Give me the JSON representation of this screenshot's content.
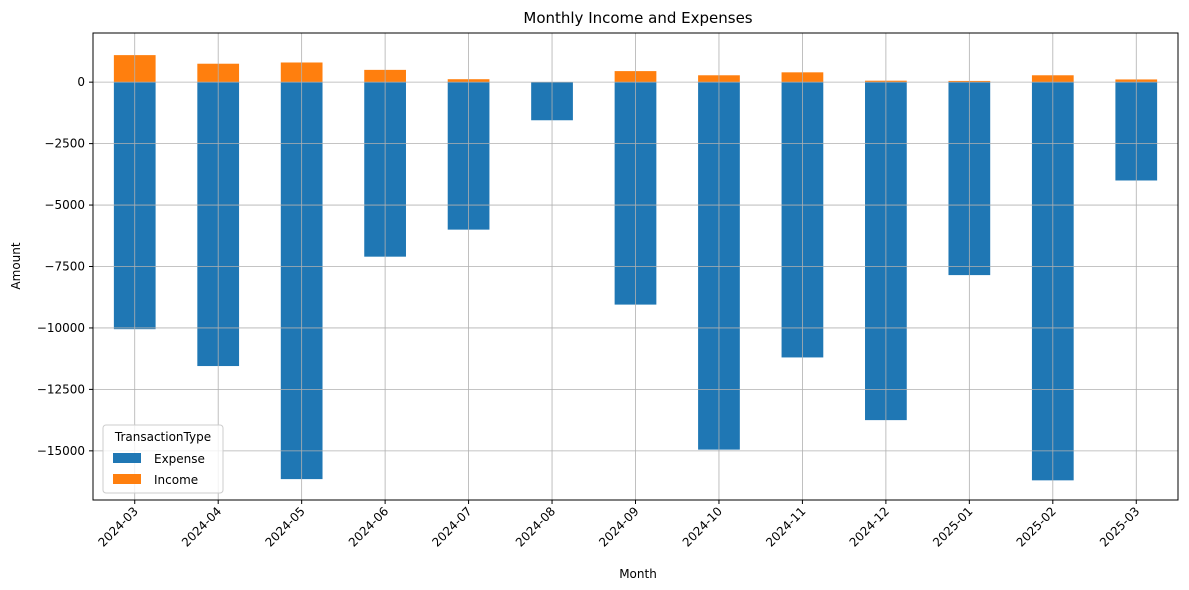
{
  "chart_data": {
    "type": "bar",
    "stacked": true,
    "title": "Monthly Income and Expenses",
    "xlabel": "Month",
    "ylabel": "Amount",
    "categories": [
      "2024-03",
      "2024-04",
      "2024-05",
      "2024-06",
      "2024-07",
      "2024-08",
      "2024-09",
      "2024-10",
      "2024-11",
      "2024-12",
      "2025-01",
      "2025-02",
      "2025-03"
    ],
    "series": [
      {
        "name": "Expense",
        "color": "#1f77b4",
        "values": [
          -10050,
          -11550,
          -16150,
          -7100,
          -6000,
          -1550,
          -9050,
          -14950,
          -11200,
          -13750,
          -7850,
          -16200,
          -4000
        ]
      },
      {
        "name": "Income",
        "color": "#ff7f0e",
        "values": [
          1100,
          750,
          800,
          500,
          120,
          0,
          450,
          280,
          400,
          60,
          50,
          280,
          110
        ]
      }
    ],
    "ylim": [
      -17000,
      2000
    ],
    "yticks": [
      0,
      -2500,
      -5000,
      -7500,
      -10000,
      -12500,
      -15000
    ],
    "ytick_labels": [
      "0",
      "−2500",
      "−5000",
      "−7500",
      "−10000",
      "−12500",
      "−15000"
    ],
    "grid": true,
    "legend": {
      "title": "TransactionType",
      "position": "lower-left"
    },
    "xtick_rotation": 45
  }
}
